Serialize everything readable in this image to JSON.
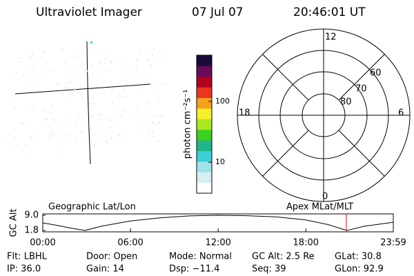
{
  "header": {
    "title": "Ultraviolet Imager",
    "date": "07 Jul 07",
    "time": "20:46:01 UT"
  },
  "colorbar": {
    "label": "photon cm⁻²s⁻¹",
    "scale": "log",
    "lim": [
      3.1,
      575
    ],
    "ticks": [
      10,
      100
    ],
    "colors": [
      "#ffffff",
      "#d8eef0",
      "#9fe3e8",
      "#3ccfd6",
      "#1fb58a",
      "#3cd11c",
      "#a8e81c",
      "#f5f02a",
      "#f5a21a",
      "#e8371e",
      "#b0001e",
      "#6a0a5a",
      "#1a0a3a"
    ]
  },
  "polar": {
    "mlt_labels": {
      "top": "12",
      "left": "18",
      "right": "6",
      "bottom": "0"
    },
    "lat_labels": [
      "60",
      "70",
      "80"
    ]
  },
  "orbit": {
    "left_label": "Geographic Lat/Lon",
    "right_label": "Apex MLat/MLT",
    "ylabel": "GC Alt",
    "ylim": [
      1.8,
      9.0
    ],
    "yticks": [
      {
        "value": 9.0,
        "label": "9.0"
      },
      {
        "value": 1.8,
        "label": "1.8"
      }
    ],
    "xlim": [
      0,
      23.983
    ],
    "xticks": [
      {
        "value": 0,
        "label": "00:00"
      },
      {
        "value": 6,
        "label": "06:00"
      },
      {
        "value": 12,
        "label": "12:00"
      },
      {
        "value": 18,
        "label": "18:00"
      },
      {
        "value": 23.983,
        "label": "23:59"
      }
    ],
    "x": [
      0,
      1,
      2,
      2.9,
      4,
      6,
      8,
      10,
      12,
      14,
      16,
      18,
      19.5,
      20.8,
      22,
      23.983
    ],
    "values": [
      5.4,
      4.2,
      2.8,
      1.8,
      3.8,
      6.3,
      7.8,
      8.7,
      9.0,
      8.8,
      8.2,
      6.8,
      4.6,
      1.8,
      3.8,
      5.7
    ],
    "current_time": 20.767,
    "marker_color": "#d01010"
  },
  "info": [
    [
      "Flt: LBHL",
      "IP: 36.0"
    ],
    [
      "Door: Open",
      "Gain: 14"
    ],
    [
      "Mode: Normal",
      "Dsp: −11.4"
    ],
    [
      "GC Alt: 2.5 Re",
      "Seq: 39"
    ],
    [
      "GLat: 30.8",
      "GLon:  92.9"
    ]
  ]
}
